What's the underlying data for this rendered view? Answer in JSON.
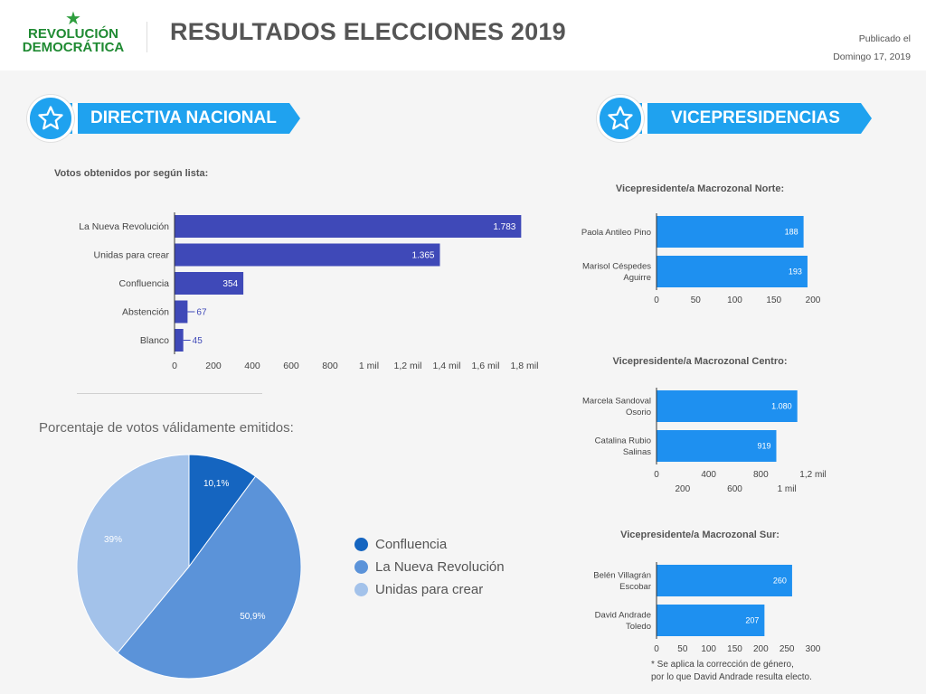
{
  "header": {
    "logo_line1": "REVOLUCIÓN",
    "logo_line2": "DEMOCRÁTICA",
    "title": "RESULTADOS ELECCIONES 2019",
    "published_line1": "Publicado el",
    "published_line2": "Domingo 17, 2019"
  },
  "sections": {
    "directiva": "DIRECTIVA NACIONAL",
    "vice": "VICEPRESIDENCIAS"
  },
  "colors": {
    "brand_green": "#1f8a32",
    "banner_blue": "#1fa2ef",
    "bar_indigo": "#3f49b8",
    "bar_blue": "#1e90f0",
    "pie_dark": "#1565c0",
    "pie_mid": "#5b93d9",
    "pie_light": "#a3c2ea"
  },
  "footnote": {
    "line1": "* Se aplica la corrección de género,",
    "line2": "por lo que David Andrade resulta electo."
  },
  "chart_data": [
    {
      "id": "lista",
      "type": "bar",
      "orientation": "horizontal",
      "title": "Votos obtenidos por según lista:",
      "categories": [
        "La Nueva Revolución",
        "Unidas para crear",
        "Confluencia",
        "Abstención",
        "Blanco"
      ],
      "values": [
        1783,
        1365,
        354,
        67,
        45
      ],
      "value_labels": [
        "1.783",
        "1.365",
        "354",
        "67",
        "45"
      ],
      "xlim": [
        0,
        1800
      ],
      "ticks": [
        0,
        200,
        400,
        600,
        800,
        1000,
        1200,
        1400,
        1600,
        1800
      ],
      "tick_labels": [
        "0",
        "200",
        "400",
        "600",
        "800",
        "1 mil",
        "1,2 mil",
        "1,4 mil",
        "1,6 mil",
        "1,8 mil"
      ]
    },
    {
      "id": "porcentaje",
      "type": "pie",
      "title": "Porcentaje de votos válidamente emitidos:",
      "categories": [
        "Confluencia",
        "La Nueva Revolución",
        "Unidas para crear"
      ],
      "values": [
        10.1,
        50.9,
        39.0
      ],
      "value_labels": [
        "10,1%",
        "50,9%",
        "39%"
      ],
      "legend": "right"
    },
    {
      "id": "norte",
      "type": "bar",
      "orientation": "horizontal",
      "title": "Vicepresidente/a Macrozonal Norte:",
      "categories": [
        [
          "Paola Antileo Pino"
        ],
        [
          "Marisol Céspedes",
          "Aguirre"
        ]
      ],
      "values": [
        188,
        193
      ],
      "value_labels": [
        "188",
        "193"
      ],
      "xlim": [
        0,
        200
      ],
      "ticks": [
        0,
        50,
        100,
        150,
        200
      ],
      "tick_labels": [
        "0",
        "50",
        "100",
        "150",
        "200"
      ]
    },
    {
      "id": "centro",
      "type": "bar",
      "orientation": "horizontal",
      "title": "Vicepresidente/a Macrozonal Centro:",
      "categories": [
        [
          "Marcela Sandoval",
          "Osorio"
        ],
        [
          "Catalina Rubio",
          "Salinas"
        ]
      ],
      "values": [
        1080,
        919
      ],
      "value_labels": [
        "1.080",
        "919"
      ],
      "xlim": [
        0,
        1200
      ],
      "ticks": [
        0,
        200,
        400,
        600,
        800,
        1000,
        1200
      ],
      "tick_labels": [
        "0",
        "200",
        "400",
        "600",
        "800",
        "1 mil",
        "1,2 mil"
      ],
      "staggered_ticks": true
    },
    {
      "id": "sur",
      "type": "bar",
      "orientation": "horizontal",
      "title": "Vicepresidente/a Macrozonal Sur:",
      "categories": [
        [
          "Belén Villagrán",
          "Escobar"
        ],
        [
          "David Andrade",
          "Toledo"
        ]
      ],
      "values": [
        260,
        207
      ],
      "value_labels": [
        "260",
        "207"
      ],
      "xlim": [
        0,
        300
      ],
      "ticks": [
        0,
        50,
        100,
        150,
        200,
        250,
        300
      ],
      "tick_labels": [
        "0",
        "50",
        "100",
        "150",
        "200",
        "250",
        "300"
      ]
    }
  ]
}
